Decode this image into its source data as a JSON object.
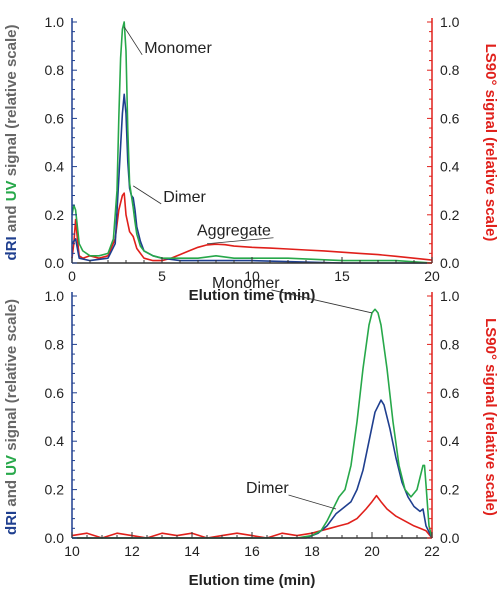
{
  "colors": {
    "dri": "#1f3f8f",
    "uv": "#27a84a",
    "ls": "#e0201b",
    "axis_left": "#1f3f8f",
    "axis_right": "#e0201b",
    "text": "#222222",
    "gray": "#666666"
  },
  "chart_data": [
    {
      "type": "line",
      "xlabel": "Elution time (min)",
      "ylabel_parts": [
        "dRI",
        " and ",
        "UV",
        " signal (relative scale)"
      ],
      "y2label": "LS90° signal (relative scale)",
      "xlim": [
        0,
        20
      ],
      "ylim": [
        0,
        1.0
      ],
      "y2lim": [
        0,
        1.0
      ],
      "x_ticks": [
        "0",
        "5",
        "10",
        "15",
        "20"
      ],
      "y_ticks": [
        "0.0",
        "0.2",
        "0.4",
        "0.6",
        "0.8",
        "1.0"
      ],
      "y2_ticks": [
        "0.0",
        "0.2",
        "0.4",
        "0.6",
        "0.8",
        "1.0"
      ],
      "grid": false,
      "annotations": [
        {
          "text": "Monomer",
          "x": 2.9,
          "y": 0.98
        },
        {
          "text": "Dimer",
          "x": 3.4,
          "y": 0.32
        },
        {
          "text": "Aggregate",
          "x": 7.5,
          "y": 0.08
        }
      ],
      "series": [
        {
          "key": "uv",
          "axis": "y",
          "x": [
            0,
            0.1,
            0.2,
            0.4,
            0.6,
            1.0,
            1.5,
            2.0,
            2.3,
            2.5,
            2.6,
            2.7,
            2.8,
            2.9,
            3.0,
            3.1,
            3.2,
            3.3,
            3.4,
            3.5,
            3.6,
            3.8,
            4.0,
            4.5,
            5.0,
            6.0,
            7.0,
            8.0,
            9.0,
            10.0,
            12.0,
            15.0,
            18.0,
            20.0
          ],
          "y": [
            0.2,
            0.24,
            0.22,
            0.08,
            0.05,
            0.03,
            0.03,
            0.04,
            0.1,
            0.3,
            0.6,
            0.85,
            0.97,
            1.0,
            0.88,
            0.55,
            0.33,
            0.28,
            0.23,
            0.17,
            0.12,
            0.07,
            0.05,
            0.03,
            0.02,
            0.02,
            0.02,
            0.03,
            0.02,
            0.02,
            0.02,
            0.01,
            0.01,
            0.0
          ]
        },
        {
          "key": "dri",
          "axis": "y",
          "x": [
            0,
            0.2,
            0.4,
            1.0,
            2.0,
            2.4,
            2.6,
            2.8,
            2.9,
            3.0,
            3.1,
            3.2,
            3.3,
            3.4,
            3.5,
            3.6,
            3.8,
            4.0,
            4.5,
            5.0,
            6.0,
            8.0,
            10.0,
            15.0,
            20.0
          ],
          "y": [
            0.08,
            0.1,
            0.02,
            0.01,
            0.02,
            0.08,
            0.35,
            0.62,
            0.7,
            0.62,
            0.42,
            0.31,
            0.28,
            0.27,
            0.22,
            0.15,
            0.09,
            0.05,
            0.03,
            0.02,
            0.01,
            0.01,
            0.01,
            0.0,
            0.0
          ]
        },
        {
          "key": "ls",
          "axis": "y2",
          "x": [
            0,
            0.1,
            0.2,
            0.3,
            0.4,
            0.6,
            1.0,
            1.5,
            2.0,
            2.4,
            2.6,
            2.8,
            2.9,
            3.0,
            3.2,
            3.4,
            3.6,
            4.0,
            4.5,
            5.0,
            5.5,
            6.0,
            6.5,
            7.0,
            7.5,
            8.0,
            8.5,
            9.0,
            10.0,
            11.0,
            12.0,
            13.0,
            14.0,
            15.0,
            16.0,
            17.0,
            18.0,
            19.0,
            20.0
          ],
          "y": [
            0.02,
            0.08,
            0.18,
            0.1,
            0.03,
            0.02,
            0.03,
            0.02,
            0.03,
            0.1,
            0.22,
            0.28,
            0.29,
            0.2,
            0.13,
            0.11,
            0.06,
            0.02,
            0.01,
            0.01,
            0.02,
            0.035,
            0.05,
            0.065,
            0.075,
            0.078,
            0.076,
            0.07,
            0.065,
            0.062,
            0.058,
            0.054,
            0.05,
            0.045,
            0.04,
            0.035,
            0.028,
            0.02,
            0.012
          ]
        }
      ]
    },
    {
      "type": "line",
      "xlabel": "Elution time (min)",
      "ylabel_parts": [
        "dRI",
        " and ",
        "UV",
        " signal (relative scale)"
      ],
      "y2label": "LS90° signal (relative scale)",
      "xlim": [
        10,
        22
      ],
      "ylim": [
        0,
        1.0
      ],
      "y2lim": [
        0,
        1.0
      ],
      "x_ticks": [
        "10",
        "12",
        "14",
        "16",
        "18",
        "20",
        "22"
      ],
      "y_ticks": [
        "0.0",
        "0.2",
        "0.4",
        "0.6",
        "0.8",
        "1.0"
      ],
      "y2_ticks": [
        "0.0",
        "0.2",
        "0.4",
        "0.6",
        "0.8",
        "1.0"
      ],
      "grid": false,
      "annotations": [
        {
          "text": "Monomer",
          "x": 20.0,
          "y": 0.93
        },
        {
          "text": "Dimer",
          "x": 18.8,
          "y": 0.12
        }
      ],
      "series": [
        {
          "key": "uv",
          "axis": "y",
          "x": [
            10.0,
            17.5,
            18.0,
            18.3,
            18.5,
            18.7,
            18.9,
            19.1,
            19.3,
            19.5,
            19.7,
            19.9,
            20.0,
            20.1,
            20.2,
            20.3,
            20.5,
            20.7,
            20.9,
            21.1,
            21.3,
            21.5,
            21.6,
            21.7,
            21.75,
            21.8,
            21.9,
            22.0
          ],
          "y": [
            0.0,
            0.0,
            0.01,
            0.03,
            0.07,
            0.12,
            0.17,
            0.2,
            0.3,
            0.48,
            0.7,
            0.88,
            0.93,
            0.945,
            0.93,
            0.88,
            0.7,
            0.48,
            0.3,
            0.2,
            0.17,
            0.2,
            0.25,
            0.3,
            0.3,
            0.22,
            0.05,
            0.0
          ]
        },
        {
          "key": "dri",
          "axis": "y",
          "x": [
            10.0,
            17.8,
            18.2,
            18.5,
            18.8,
            19.0,
            19.3,
            19.5,
            19.7,
            19.9,
            20.1,
            20.3,
            20.4,
            20.6,
            20.8,
            21.0,
            21.2,
            21.4,
            21.6,
            21.7,
            21.8,
            22.0
          ],
          "y": [
            0.0,
            0.0,
            0.02,
            0.05,
            0.1,
            0.12,
            0.15,
            0.2,
            0.28,
            0.4,
            0.52,
            0.57,
            0.55,
            0.45,
            0.33,
            0.23,
            0.17,
            0.13,
            0.11,
            0.12,
            0.05,
            0.0
          ]
        },
        {
          "key": "ls",
          "axis": "y2",
          "x": [
            10.0,
            10.5,
            11.0,
            11.5,
            12.0,
            12.5,
            13.0,
            13.5,
            14.0,
            14.5,
            15.0,
            15.5,
            16.0,
            16.5,
            17.0,
            17.5,
            18.0,
            18.3,
            18.6,
            18.9,
            19.2,
            19.5,
            19.8,
            20.0,
            20.15,
            20.3,
            20.5,
            20.8,
            21.1,
            21.4,
            21.6,
            21.8,
            22.0
          ],
          "y": [
            0.01,
            0.02,
            0.0,
            0.02,
            0.01,
            0.0,
            0.02,
            0.01,
            0.02,
            0.0,
            0.01,
            0.02,
            0.01,
            0.0,
            0.02,
            0.01,
            0.02,
            0.03,
            0.04,
            0.05,
            0.06,
            0.08,
            0.12,
            0.15,
            0.175,
            0.15,
            0.12,
            0.09,
            0.07,
            0.05,
            0.04,
            0.03,
            0.0
          ]
        }
      ]
    }
  ]
}
